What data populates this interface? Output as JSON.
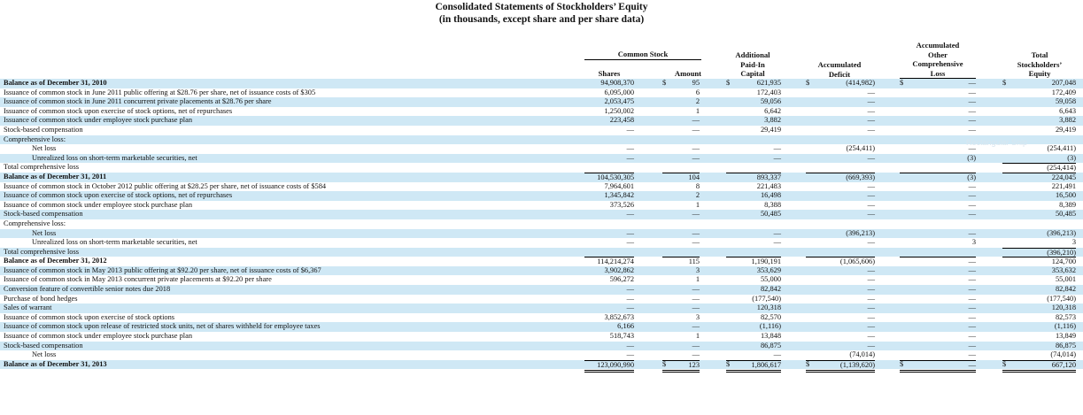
{
  "title_line1": "Consolidated Statements of Stockholders’ Equity",
  "title_line2": "(in thousands, except share and per share data)",
  "headers": {
    "common_stock": "Common Stock",
    "shares": "Shares",
    "amount": "Amount",
    "apic_1": "Additional",
    "apic_2": "Paid-In",
    "apic_3": "Capital",
    "deficit_1": "Accumulated",
    "deficit_2": "Deficit",
    "aoci_1": "Accumulated",
    "aoci_2": "Other",
    "aoci_3": "Comprehensive",
    "aoci_4": "Loss",
    "total_1": "Total",
    "total_2": "Stockholders’",
    "total_3": "Equity"
  },
  "dollar_sign": "$",
  "watermark": "Rectangular Snip",
  "rows": [
    {
      "label": "Balance as of December 31, 2010",
      "bold": true,
      "shares": "94,908,370",
      "amount": "95",
      "apic": "621,935",
      "deficit": "(414,982)",
      "aoci": "—",
      "total": "207,048",
      "dollars": true
    },
    {
      "label": "Issuance of common stock in June 2011 public offering at $28.76 per share, net of issuance costs of $305",
      "shares": "6,095,000",
      "amount": "6",
      "apic": "172,403",
      "deficit": "—",
      "aoci": "—",
      "total": "172,409"
    },
    {
      "label": "Issuance of common stock in June 2011 concurrent private placements at $28.76 per share",
      "shares": "2,053,475",
      "amount": "2",
      "apic": "59,056",
      "deficit": "—",
      "aoci": "—",
      "total": "59,058"
    },
    {
      "label": "Issuance of common stock upon exercise of stock options, net of repurchases",
      "shares": "1,250,002",
      "amount": "1",
      "apic": "6,642",
      "deficit": "—",
      "aoci": "—",
      "total": "6,643"
    },
    {
      "label": "Issuance of common stock under employee stock purchase plan",
      "shares": "223,458",
      "amount": "—",
      "apic": "3,882",
      "deficit": "—",
      "aoci": "—",
      "total": "3,882"
    },
    {
      "label": "Stock-based compensation",
      "shares": "—",
      "amount": "—",
      "apic": "29,419",
      "deficit": "—",
      "aoci": "—",
      "total": "29,419"
    },
    {
      "label": "Comprehensive loss:",
      "shares": "",
      "amount": "",
      "apic": "",
      "deficit": "",
      "aoci": "",
      "total": ""
    },
    {
      "label": "Net loss",
      "indent": true,
      "shares": "—",
      "amount": "—",
      "apic": "—",
      "deficit": "(254,411)",
      "aoci": "—",
      "total": "(254,411)"
    },
    {
      "label": "Unrealized loss on short-term marketable securities, net",
      "indent": true,
      "shares": "—",
      "amount": "—",
      "apic": "—",
      "deficit": "—",
      "aoci": "(3)",
      "total": "(3)"
    },
    {
      "label": "Total comprehensive loss",
      "shares": "",
      "amount": "",
      "apic": "",
      "deficit": "",
      "aoci": "",
      "total": "(254,414)"
    },
    {
      "label": "Balance as of December 31, 2011",
      "bold": true,
      "shares": "104,530,305",
      "amount": "104",
      "apic": "893,337",
      "deficit": "(669,393)",
      "aoci": "(3)",
      "total": "224,045"
    },
    {
      "label": "Issuance of common stock in October 2012 public offering at $28.25 per share, net of issuance costs of $584",
      "shares": "7,964,601",
      "amount": "8",
      "apic": "221,483",
      "deficit": "—",
      "aoci": "—",
      "total": "221,491"
    },
    {
      "label": "Issuance of common stock upon exercise of stock options, net of repurchases",
      "shares": "1,345,842",
      "amount": "2",
      "apic": "16,498",
      "deficit": "—",
      "aoci": "—",
      "total": "16,500"
    },
    {
      "label": "Issuance of common stock under employee stock purchase plan",
      "shares": "373,526",
      "amount": "1",
      "apic": "8,388",
      "deficit": "—",
      "aoci": "—",
      "total": "8,389"
    },
    {
      "label": "Stock-based compensation",
      "shares": "—",
      "amount": "—",
      "apic": "50,485",
      "deficit": "—",
      "aoci": "—",
      "total": "50,485"
    },
    {
      "label": "Comprehensive loss:",
      "shares": "",
      "amount": "",
      "apic": "",
      "deficit": "",
      "aoci": "",
      "total": ""
    },
    {
      "label": "Net loss",
      "indent": true,
      "shares": "—",
      "amount": "—",
      "apic": "—",
      "deficit": "(396,213)",
      "aoci": "—",
      "total": "(396,213)"
    },
    {
      "label": "Unrealized loss on short-term marketable securities, net",
      "indent": true,
      "shares": "—",
      "amount": "—",
      "apic": "—",
      "deficit": "—",
      "aoci": "3",
      "total": "3"
    },
    {
      "label": "Total comprehensive loss",
      "shares": "",
      "amount": "",
      "apic": "",
      "deficit": "",
      "aoci": "",
      "total": "(396,210)"
    },
    {
      "label": "Balance as of December 31, 2012",
      "bold": true,
      "shares": "114,214,274",
      "amount": "115",
      "apic": "1,190,191",
      "deficit": "(1,065,606)",
      "aoci": "—",
      "total": "124,700"
    },
    {
      "label": "Issuance of common stock in May 2013 public offering at $92.20 per share, net of issuance costs of $6,367",
      "shares": "3,902,862",
      "amount": "3",
      "apic": "353,629",
      "deficit": "—",
      "aoci": "—",
      "total": "353,632"
    },
    {
      "label": "Issuance of common stock in May 2013 concurrent private placements at $92.20 per share",
      "shares": "596,272",
      "amount": "1",
      "apic": "55,000",
      "deficit": "—",
      "aoci": "—",
      "total": "55,001"
    },
    {
      "label": "Conversion feature of convertible senior notes due 2018",
      "shares": "—",
      "amount": "—",
      "apic": "82,842",
      "deficit": "—",
      "aoci": "—",
      "total": "82,842"
    },
    {
      "label": "Purchase of bond hedges",
      "shares": "—",
      "amount": "—",
      "apic": "(177,540)",
      "deficit": "—",
      "aoci": "—",
      "total": "(177,540)"
    },
    {
      "label": "Sales of warrant",
      "shares": "—",
      "amount": "—",
      "apic": "120,318",
      "deficit": "—",
      "aoci": "—",
      "total": "120,318"
    },
    {
      "label": "Issuance of common stock upon exercise of stock options",
      "shares": "3,852,673",
      "amount": "3",
      "apic": "82,570",
      "deficit": "—",
      "aoci": "—",
      "total": "82,573"
    },
    {
      "label": "Issuance of common stock upon release of restricted stock units, net of shares withheld for employee taxes",
      "shares": "6,166",
      "amount": "—",
      "apic": "(1,116)",
      "deficit": "—",
      "aoci": "—",
      "total": "(1,116)"
    },
    {
      "label": "Issuance of common stock under employee stock purchase plan",
      "shares": "518,743",
      "amount": "1",
      "apic": "13,848",
      "deficit": "—",
      "aoci": "—",
      "total": "13,849"
    },
    {
      "label": "Stock-based compensation",
      "shares": "—",
      "amount": "—",
      "apic": "86,875",
      "deficit": "—",
      "aoci": "—",
      "total": "86,875"
    },
    {
      "label": "Net loss",
      "indent": true,
      "shares": "—",
      "amount": "—",
      "apic": "—",
      "deficit": "(74,014)",
      "aoci": "—",
      "total": "(74,014)"
    },
    {
      "label": "Balance as of December 31, 2013",
      "bold": true,
      "shares": "123,090,990",
      "amount": "123",
      "apic": "1,806,617",
      "deficit": "(1,139,620)",
      "aoci": "—",
      "total": "667,120",
      "dollars": true
    }
  ]
}
